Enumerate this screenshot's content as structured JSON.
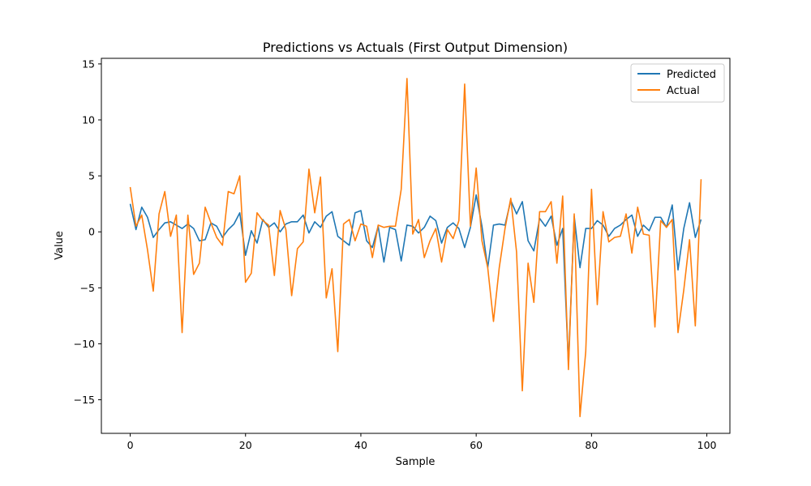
{
  "chart_data": {
    "type": "line",
    "title": "Predictions vs Actuals (First Output Dimension)",
    "xlabel": "Sample",
    "ylabel": "Value",
    "xlim": [
      -5,
      104
    ],
    "ylim": [
      -18,
      15.5
    ],
    "xticks": [
      0,
      20,
      40,
      60,
      80,
      100
    ],
    "yticks": [
      -15,
      -10,
      -5,
      0,
      5,
      10,
      15
    ],
    "ytick_labels": [
      "−15",
      "−10",
      "−5",
      "0",
      "5",
      "10",
      "15"
    ],
    "grid": false,
    "legend_position": "top-right",
    "x": [
      0,
      1,
      2,
      3,
      4,
      5,
      6,
      7,
      8,
      9,
      10,
      11,
      12,
      13,
      14,
      15,
      16,
      17,
      18,
      19,
      20,
      21,
      22,
      23,
      24,
      25,
      26,
      27,
      28,
      29,
      30,
      31,
      32,
      33,
      34,
      35,
      36,
      37,
      38,
      39,
      40,
      41,
      42,
      43,
      44,
      45,
      46,
      47,
      48,
      49,
      50,
      51,
      52,
      53,
      54,
      55,
      56,
      57,
      58,
      59,
      60,
      61,
      62,
      63,
      64,
      65,
      66,
      67,
      68,
      69,
      70,
      71,
      72,
      73,
      74,
      75,
      76,
      77,
      78,
      79,
      80,
      81,
      82,
      83,
      84,
      85,
      86,
      87,
      88,
      89,
      90,
      91,
      92,
      93,
      94,
      95,
      96,
      97,
      98,
      99
    ],
    "series": [
      {
        "name": "Predicted",
        "color": "#1f77b4",
        "values": [
          2.5,
          0.2,
          2.2,
          1.3,
          -0.5,
          0.2,
          0.8,
          0.9,
          0.6,
          0.3,
          0.7,
          0.3,
          -0.8,
          -0.7,
          0.8,
          0.5,
          -0.5,
          0.2,
          0.7,
          1.7,
          -2.1,
          0.1,
          -1.0,
          1.1,
          0.4,
          0.8,
          0.0,
          0.7,
          0.9,
          0.9,
          1.5,
          -0.1,
          0.9,
          0.4,
          1.4,
          1.8,
          -0.4,
          -0.8,
          -1.2,
          1.7,
          1.9,
          -0.8,
          -1.4,
          0.5,
          -2.7,
          0.4,
          0.2,
          -2.6,
          0.6,
          0.5,
          -0.1,
          0.4,
          1.4,
          1.0,
          -1.0,
          0.4,
          0.8,
          0.3,
          -1.4,
          0.4,
          3.3,
          0.5,
          -3.2,
          0.6,
          0.7,
          0.6,
          2.8,
          1.6,
          2.7,
          -0.8,
          -1.7,
          1.2,
          0.5,
          1.4,
          -1.2,
          0.3,
          -11.8,
          1.4,
          -3.2,
          0.3,
          0.3,
          1.0,
          0.6,
          -0.4,
          0.3,
          0.6,
          1.1,
          1.5,
          -0.4,
          0.6,
          0.1,
          1.3,
          1.3,
          0.4,
          2.4,
          -3.4,
          0.3,
          2.6,
          -0.5,
          1.1
        ]
      },
      {
        "name": "Actual",
        "color": "#ff7f0e",
        "values": [
          4.0,
          0.5,
          1.5,
          -1.6,
          -5.3,
          1.6,
          3.6,
          -0.4,
          1.5,
          -9.0,
          1.5,
          -3.8,
          -2.8,
          2.2,
          0.8,
          -0.5,
          -1.2,
          3.6,
          3.4,
          5.0,
          -4.5,
          -3.7,
          1.7,
          1.0,
          0.6,
          -3.9,
          1.9,
          0.2,
          -5.7,
          -1.5,
          -0.9,
          5.6,
          1.7,
          4.9,
          -5.9,
          -3.3,
          -10.7,
          0.7,
          1.1,
          -0.8,
          0.7,
          0.5,
          -2.3,
          0.6,
          0.4,
          0.5,
          0.5,
          3.8,
          13.7,
          -0.2,
          1.1,
          -2.3,
          -0.8,
          0.3,
          -2.7,
          0.2,
          -0.6,
          1.0,
          13.2,
          0.5,
          5.7,
          -0.8,
          -3.2,
          -8.0,
          -3.2,
          0.3,
          3.0,
          -1.8,
          -14.2,
          -2.8,
          -6.3,
          1.8,
          1.8,
          2.7,
          -2.8,
          3.2,
          -12.3,
          1.6,
          -16.5,
          -10.7,
          3.8,
          -6.5,
          1.8,
          -0.9,
          -0.5,
          -0.4,
          1.6,
          -1.9,
          2.2,
          -0.2,
          -0.3,
          -8.5,
          1.0,
          0.4,
          1.1,
          -9.0,
          -5.2,
          -0.7,
          -8.4,
          4.7
        ]
      }
    ]
  }
}
